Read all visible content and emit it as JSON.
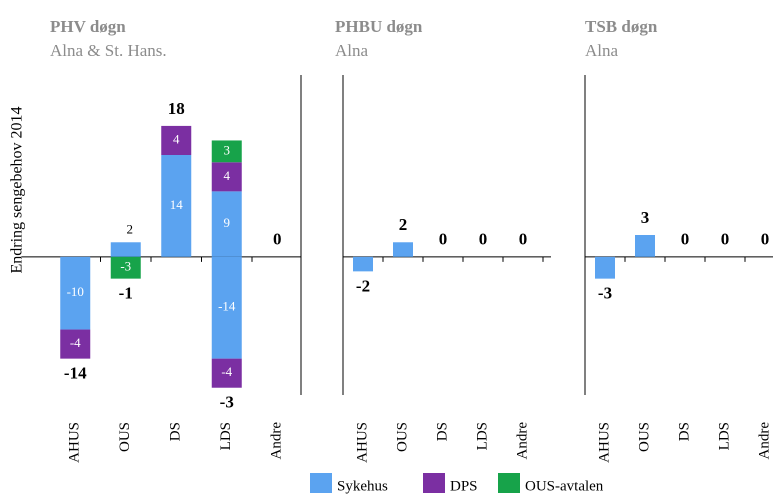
{
  "chart_data": [
    {
      "type": "bar",
      "title": "PHV døgn",
      "subtitle": "Alna & St. Hans.",
      "ylabel": "Endring sengebehov 2014",
      "categories": [
        "AHUS",
        "OUS",
        "DS",
        "LDS",
        "Andre"
      ],
      "series": [
        {
          "name": "Sykehus",
          "color": "#5ba3f0",
          "values": [
            -10,
            2,
            14,
            [
              9,
              -14
            ],
            null
          ]
        },
        {
          "name": "DPS",
          "color": "#7b2fa2",
          "values": [
            -4,
            null,
            4,
            [
              4,
              -4
            ],
            null
          ]
        },
        {
          "name": "OUS-avtalen",
          "color": "#17a34a",
          "values": [
            null,
            -3,
            null,
            3,
            null
          ]
        }
      ],
      "totals": [
        -14,
        -1,
        18,
        -3,
        0
      ],
      "segment_labels": true,
      "ylim": [
        -19,
        25
      ]
    },
    {
      "type": "bar",
      "title": "PHBU døgn",
      "subtitle": "Alna",
      "categories": [
        "AHUS",
        "OUS",
        "DS",
        "LDS",
        "Andre"
      ],
      "series": [
        {
          "name": "Sykehus",
          "color": "#5ba3f0",
          "values": [
            -2,
            2,
            null,
            null,
            null
          ]
        }
      ],
      "totals": [
        -2,
        2,
        0,
        0,
        0
      ],
      "segment_labels": false,
      "ylim": [
        -19,
        25
      ]
    },
    {
      "type": "bar",
      "title": "TSB døgn",
      "subtitle": "Alna",
      "categories": [
        "AHUS",
        "OUS",
        "DS",
        "LDS",
        "Andre"
      ],
      "series": [
        {
          "name": "Sykehus",
          "color": "#5ba3f0",
          "values": [
            -3,
            3,
            null,
            null,
            null
          ]
        }
      ],
      "totals": [
        -3,
        3,
        0,
        0,
        0
      ],
      "segment_labels": false,
      "ylim": [
        -19,
        25
      ]
    }
  ]
}
